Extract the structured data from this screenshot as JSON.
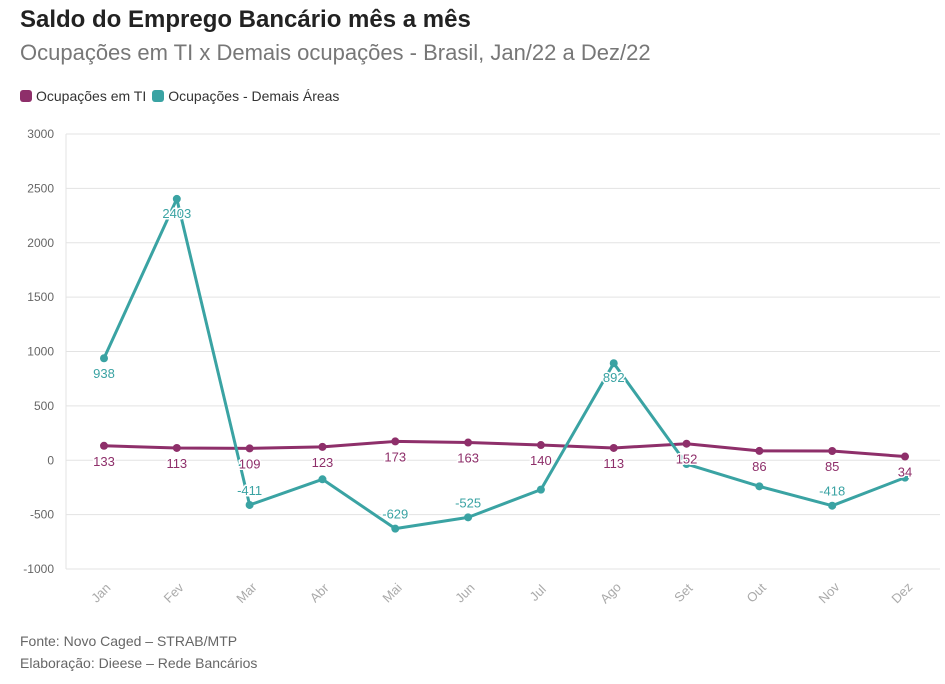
{
  "header": {
    "title": "Saldo do Emprego Bancário mês a mês",
    "subtitle": "Ocupações em TI x Demais ocupações - Brasil, Jan/22 a Dez/22"
  },
  "footer": {
    "source": "Fonte: Novo Caged – STRAB/MTP",
    "credit": "Elaboração: Dieese – Rede Bancários"
  },
  "chart_data": {
    "type": "line",
    "categories": [
      "Jan",
      "Fev",
      "Mar",
      "Abr",
      "Mai",
      "Jun",
      "Jul",
      "Ago",
      "Set",
      "Out",
      "Nov",
      "Dez"
    ],
    "ylim": [
      -1000,
      3000
    ],
    "yticks": [
      -1000,
      -500,
      0,
      500,
      1000,
      1500,
      2000,
      2500,
      3000
    ],
    "grid": true,
    "legend_position": "top-left",
    "series": [
      {
        "name": "Ocupações em TI",
        "color": "#8e2f6a",
        "values": [
          133,
          113,
          109,
          123,
          173,
          163,
          140,
          113,
          152,
          86,
          85,
          34
        ],
        "labels": [
          "133",
          "113",
          "109",
          "123",
          "173",
          "163",
          "140",
          "113",
          "152",
          "86",
          "85",
          "34"
        ]
      },
      {
        "name": "Ocupações - Demais Áreas",
        "color": "#3aa3a3",
        "values": [
          938,
          2403,
          -411,
          -175,
          -629,
          -525,
          -270,
          892,
          -35,
          -240,
          -418,
          -160
        ],
        "labels": [
          "938",
          "2403",
          "-411",
          "",
          "-629",
          "-525",
          "",
          "892",
          "",
          "",
          "-418",
          ""
        ]
      }
    ]
  }
}
